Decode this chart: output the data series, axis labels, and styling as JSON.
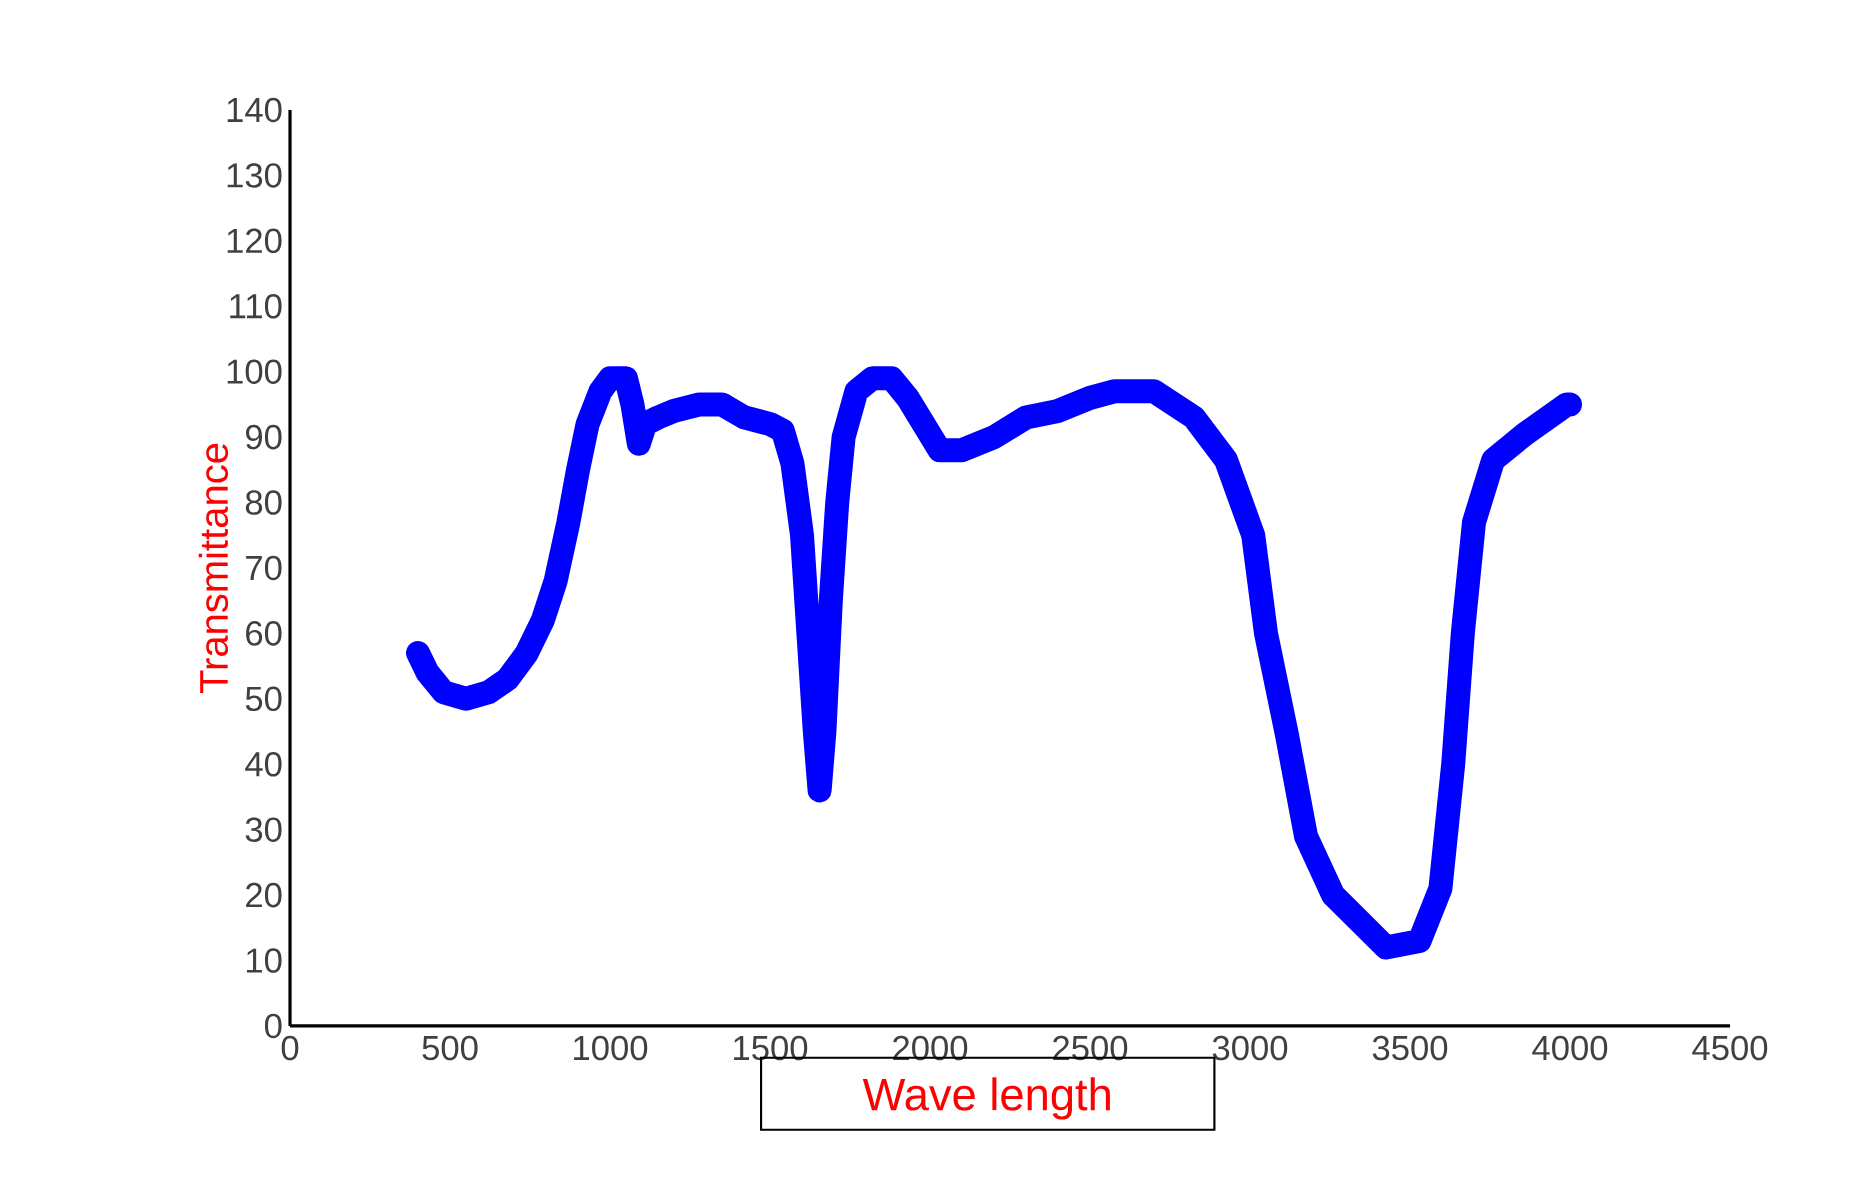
{
  "chart_data": {
    "type": "line",
    "xlabel": "Wave length",
    "ylabel": "Transmittance",
    "x": [
      400,
      430,
      480,
      550,
      620,
      680,
      740,
      790,
      830,
      870,
      900,
      930,
      970,
      1000,
      1050,
      1070,
      1090,
      1110,
      1150,
      1200,
      1280,
      1350,
      1420,
      1500,
      1540,
      1570,
      1600,
      1620,
      1640,
      1655,
      1670,
      1690,
      1710,
      1730,
      1770,
      1820,
      1880,
      1930,
      1980,
      2030,
      2100,
      2200,
      2300,
      2400,
      2500,
      2575,
      2700,
      2825,
      2925,
      3010,
      3050,
      3115,
      3175,
      3260,
      3425,
      3530,
      3595,
      3635,
      3665,
      3700,
      3760,
      3860,
      3990,
      4000
    ],
    "series": [
      {
        "color": "#0000ff",
        "values": [
          57,
          54,
          51,
          50,
          51,
          53,
          57,
          62,
          68,
          77,
          85,
          92,
          97,
          99,
          99,
          95,
          89,
          92,
          93,
          94,
          95,
          95,
          93,
          92,
          91,
          86,
          75,
          60,
          45,
          36,
          45,
          65,
          80,
          90,
          97,
          99,
          99,
          96,
          92,
          88,
          88,
          90,
          93,
          94,
          96,
          97,
          97,
          93,
          86.5,
          75,
          60,
          44.6,
          29,
          20,
          12,
          13,
          21,
          40,
          60,
          77,
          86.5,
          90.5,
          95,
          95
        ]
      }
    ],
    "xlim": [
      0,
      4500
    ],
    "xticks": [
      0,
      500,
      1000,
      1500,
      2000,
      2500,
      3000,
      3500,
      4000,
      4500
    ],
    "ylim": [
      0,
      140
    ],
    "yticks": [
      0,
      10,
      20,
      30,
      40,
      50,
      60,
      70,
      80,
      90,
      100,
      110,
      120,
      130,
      140
    ],
    "grid": false,
    "marker": "none",
    "line_style": "solid"
  }
}
